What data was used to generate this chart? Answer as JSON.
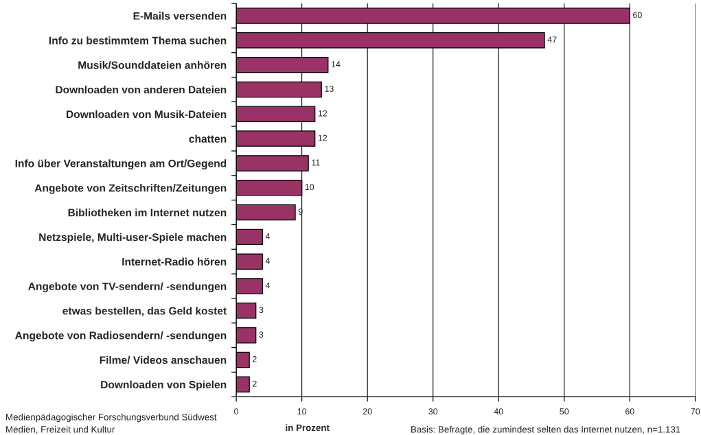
{
  "chart_data": {
    "type": "bar",
    "orientation": "horizontal",
    "categories": [
      "E-Mails versenden",
      "Info zu bestimmtem Thema suchen",
      "Musik/Sounddateien anhören",
      "Downloaden von anderen Dateien",
      "Downloaden von Musik-Dateien",
      "chatten",
      "Info über Veranstaltungen am Ort/Gegend",
      "Angebote von Zeitschriften/Zeitungen",
      "Bibliotheken im Internet nutzen",
      "Netzspiele, Multi-user-Spiele machen",
      "Internet-Radio hören",
      "Angebote von TV-sendern/ -sendungen",
      "etwas bestellen, das Geld kostet",
      "Angebote von Radiosendern/ -sendungen",
      "Filme/ Videos anschauen",
      "Downloaden von Spielen"
    ],
    "values": [
      60,
      47,
      14,
      13,
      12,
      12,
      11,
      10,
      9,
      4,
      4,
      4,
      3,
      3,
      2,
      2
    ],
    "color": "#993366",
    "xlim": [
      0,
      70
    ],
    "xticks": [
      0,
      10,
      20,
      30,
      40,
      50,
      60,
      70
    ],
    "grid": "x",
    "data_labels": true,
    "xlabel": "in Prozent",
    "annotations": [
      "Medienpädagogischer Forschungsverbund Südwest",
      "Medien, Freizeit und Kultur",
      "Basis: Befragte, die zumindest selten das Internet nutzen, n=1.131"
    ]
  }
}
